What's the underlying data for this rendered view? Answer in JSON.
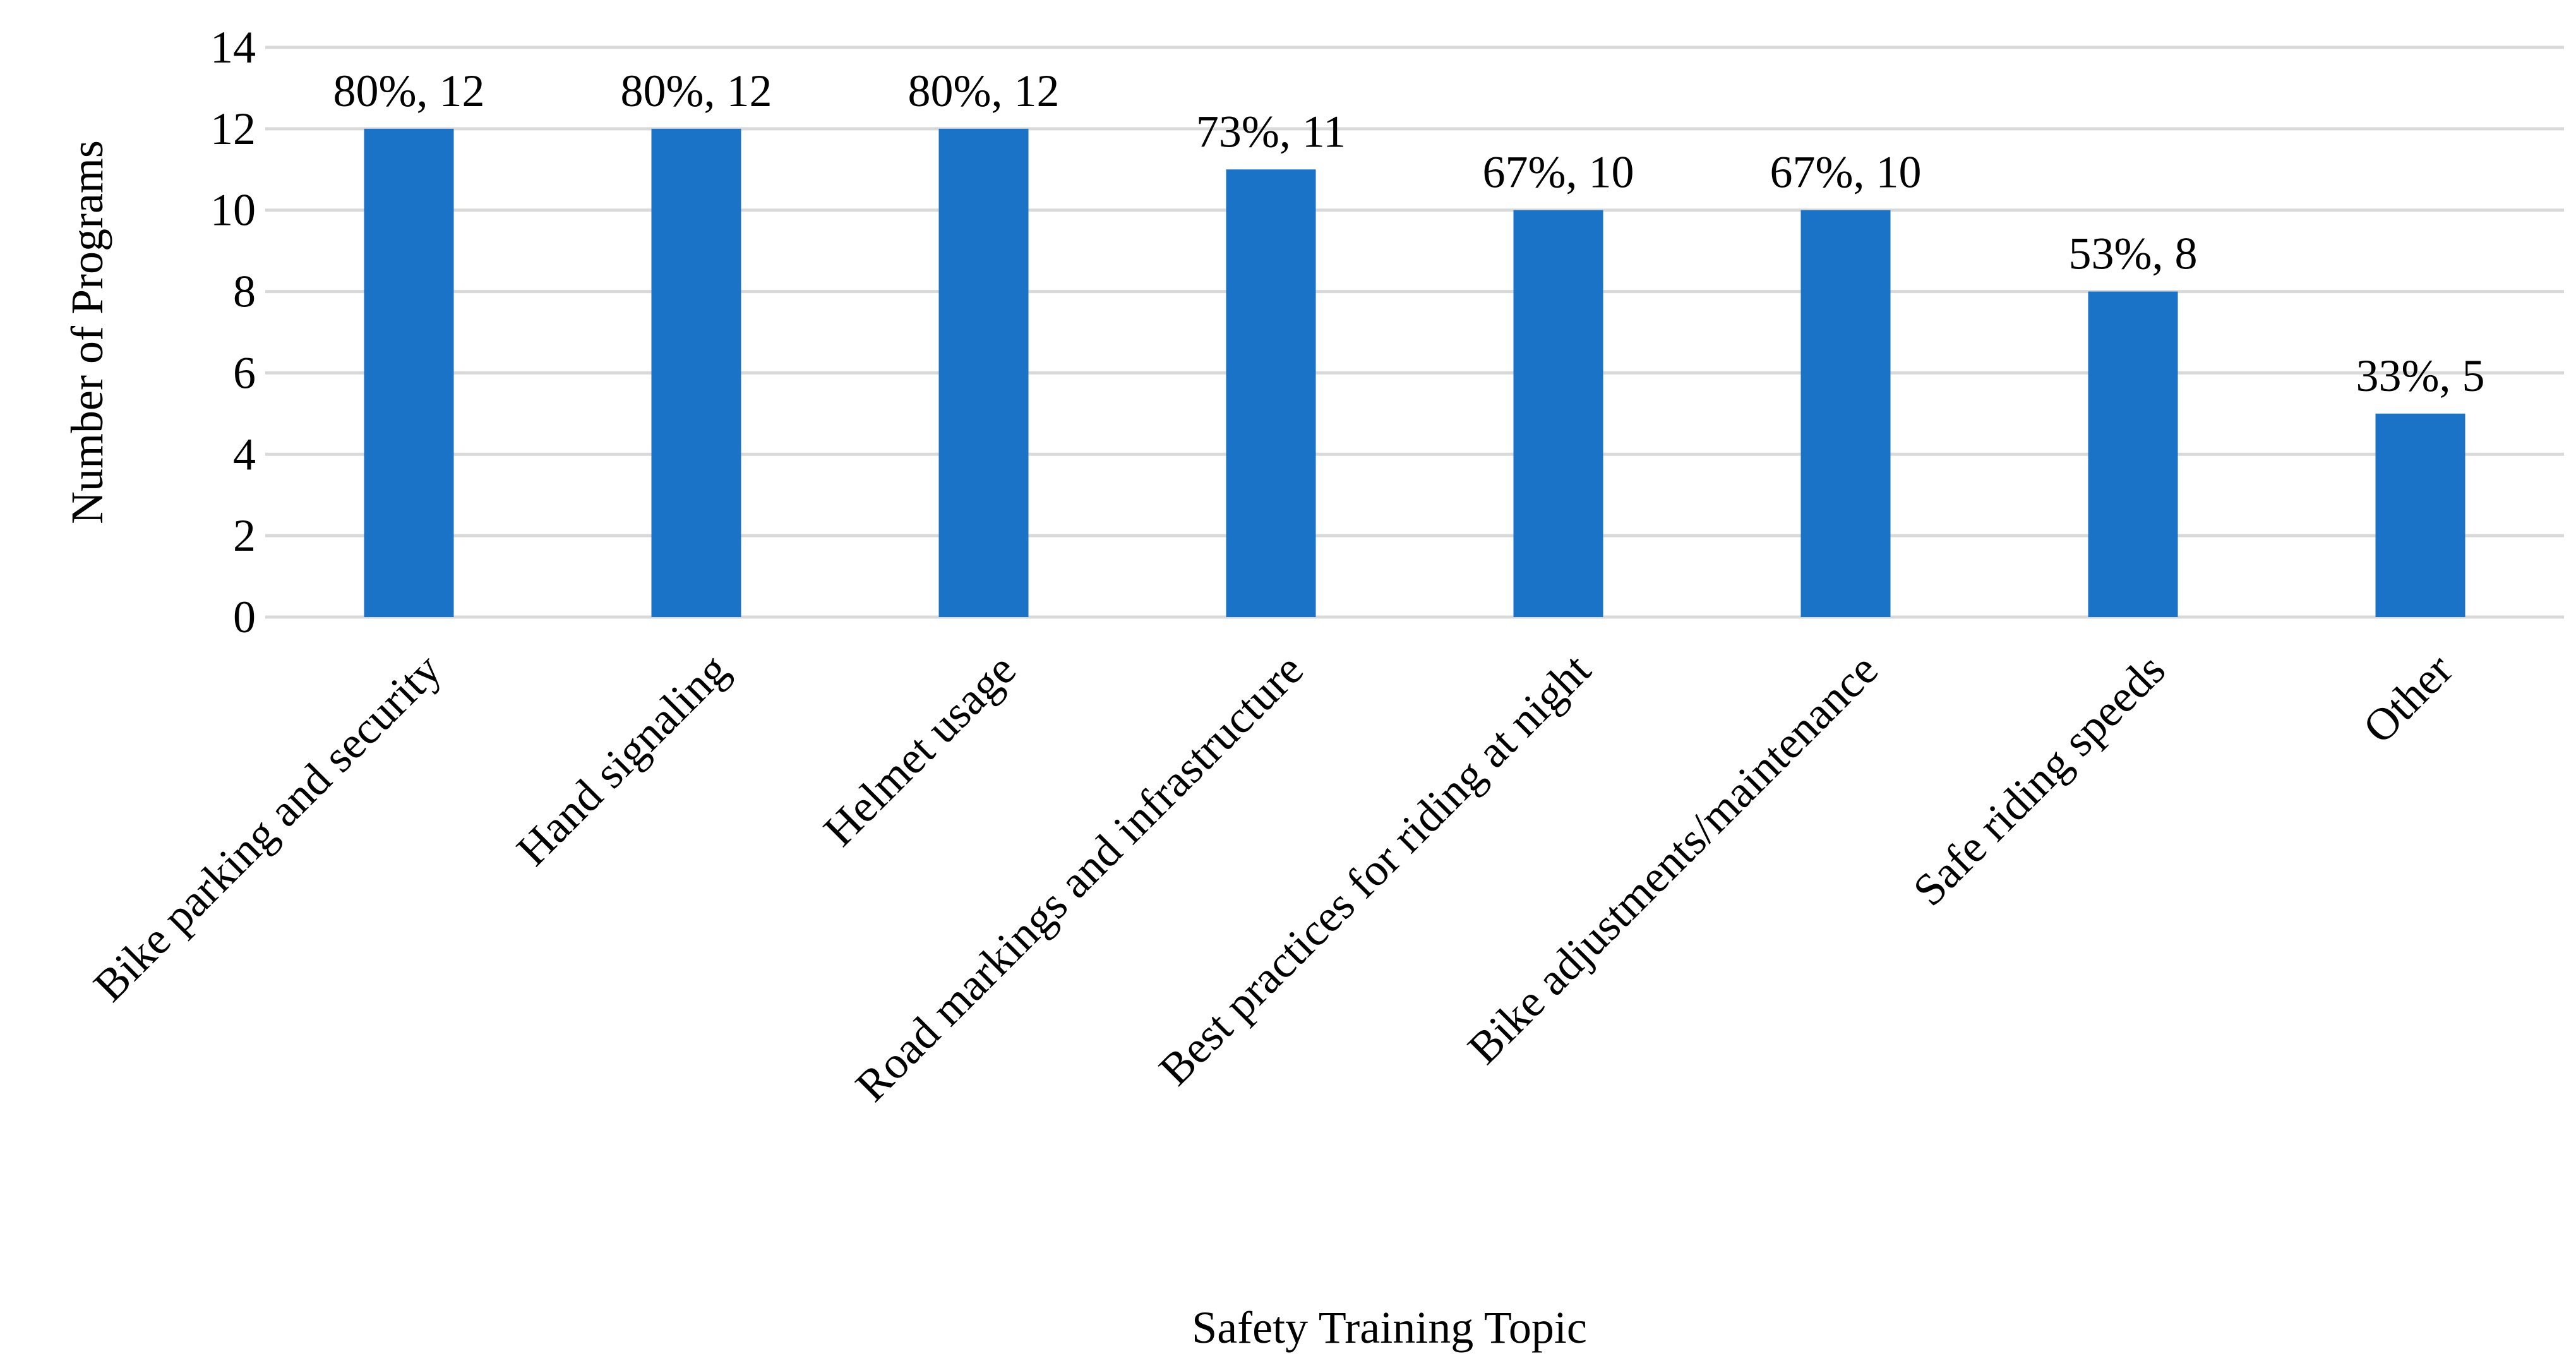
{
  "chart_data": {
    "type": "bar",
    "title": "",
    "xlabel": "Safety Training Topic",
    "ylabel": "Number of Programs",
    "ylim": [
      0,
      14
    ],
    "yticks": [
      0,
      2,
      4,
      6,
      8,
      10,
      12,
      14
    ],
    "grid": true,
    "legend": "none",
    "bar_color": "#1a73c7",
    "categories": [
      "Bike parking and security",
      "Hand signaling",
      "Helmet usage",
      "Road markings and infrastructure",
      "Best practices for riding at night",
      "Bike adjustments/maintenance",
      "Safe riding speeds",
      "Other"
    ],
    "values": [
      12,
      12,
      12,
      11,
      10,
      10,
      8,
      5
    ],
    "data_labels": [
      "80%, 12",
      "80%, 12",
      "80%, 12",
      "73%, 11",
      "67%, 10",
      "67%, 10",
      "53%, 8",
      "33%, 5"
    ]
  }
}
